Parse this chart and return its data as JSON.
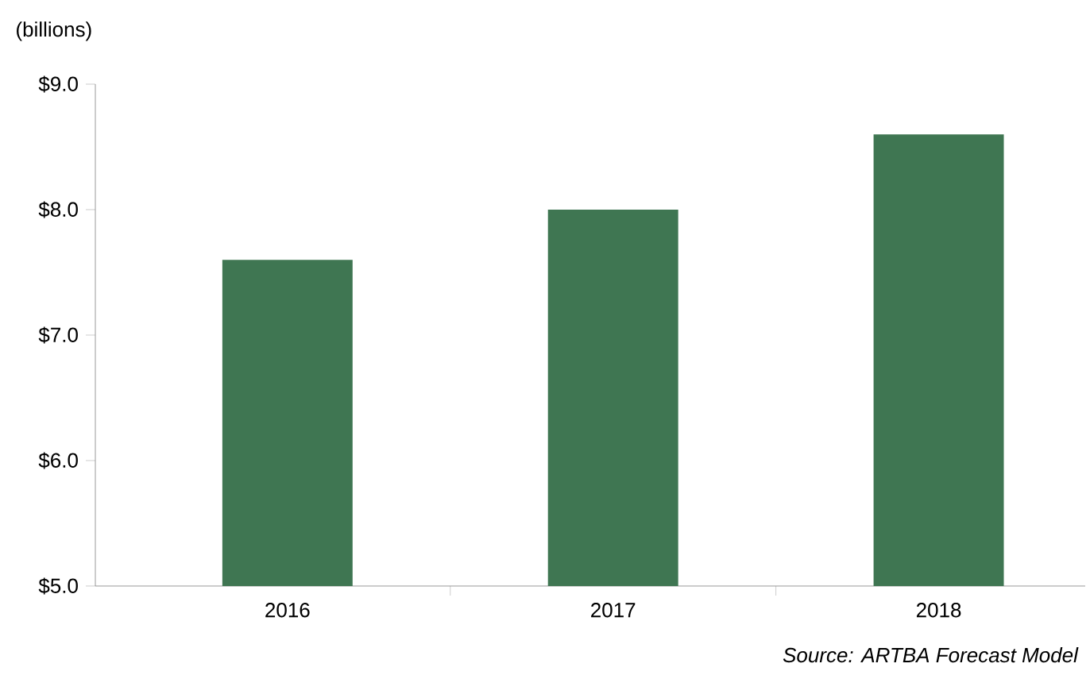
{
  "chart_data": {
    "type": "bar",
    "ylabel": "(billions)",
    "categories": [
      "2016",
      "2017",
      "2018"
    ],
    "values": [
      7.6,
      8.0,
      8.6
    ],
    "color": "#3f7652",
    "ylim": [
      5,
      9
    ],
    "yticks": [
      {
        "value": 5,
        "label": "$5.0"
      },
      {
        "value": 6,
        "label": "$6.0"
      },
      {
        "value": 7,
        "label": "$7.0"
      },
      {
        "value": 8,
        "label": "$8.0"
      },
      {
        "value": 9,
        "label": "$9.0"
      }
    ],
    "annotations": [
      "Source: ARTBA Forecast Model"
    ]
  }
}
